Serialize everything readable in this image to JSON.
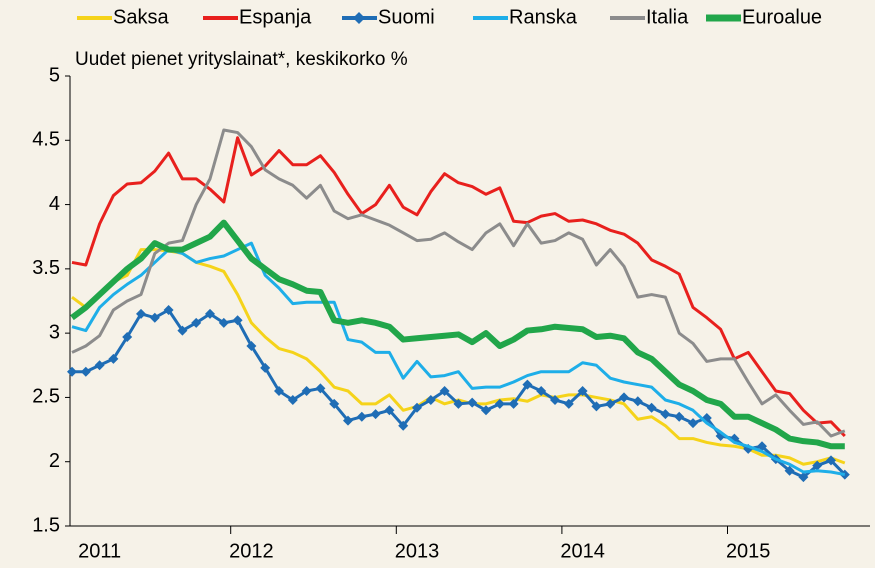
{
  "chart_data": {
    "type": "line",
    "subtitle": "Uudet pienet yrityslainat*, keskikorko %",
    "categories": [
      null,
      null,
      "2011",
      null,
      null,
      null,
      null,
      null,
      null,
      null,
      null,
      null,
      null,
      "2012",
      null,
      null,
      null,
      null,
      null,
      null,
      null,
      null,
      null,
      null,
      null,
      "2013",
      null,
      null,
      null,
      null,
      null,
      null,
      null,
      null,
      null,
      null,
      null,
      "2014",
      null,
      null,
      null,
      null,
      null,
      null,
      null,
      null,
      null,
      null,
      null,
      "2015",
      null,
      null,
      null,
      null,
      null,
      null,
      null
    ],
    "ylim": [
      1.5,
      5
    ],
    "yticks": [
      1.5,
      2,
      2.5,
      3,
      3.5,
      4,
      4.5,
      5
    ],
    "legend": "top",
    "series": [
      {
        "name": "Saksa",
        "color": "#f5d31a",
        "values": [
          3.28,
          3.2,
          3.3,
          3.4,
          3.45,
          3.65,
          3.65,
          3.64,
          3.62,
          3.55,
          3.52,
          3.48,
          3.3,
          3.08,
          2.97,
          2.88,
          2.85,
          2.8,
          2.7,
          2.58,
          2.55,
          2.45,
          2.45,
          2.52,
          2.4,
          2.43,
          2.5,
          2.45,
          2.48,
          2.45,
          2.45,
          2.48,
          2.49,
          2.47,
          2.52,
          2.5,
          2.52,
          2.52,
          2.5,
          2.48,
          2.45,
          2.33,
          2.35,
          2.28,
          2.18,
          2.18,
          2.15,
          2.13,
          2.12,
          2.1,
          2.05,
          2.05,
          2.03,
          1.98,
          2.0,
          2.03,
          1.99
        ]
      },
      {
        "name": "Espanja",
        "color": "#e8201d",
        "values": [
          3.55,
          3.53,
          3.85,
          4.07,
          4.16,
          4.17,
          4.26,
          4.4,
          4.2,
          4.2,
          4.12,
          4.02,
          4.52,
          4.23,
          4.3,
          4.42,
          4.31,
          4.31,
          4.38,
          4.25,
          4.08,
          3.93,
          4.0,
          4.15,
          3.98,
          3.92,
          4.1,
          4.24,
          4.17,
          4.14,
          4.08,
          4.13,
          3.87,
          3.86,
          3.91,
          3.93,
          3.87,
          3.88,
          3.85,
          3.8,
          3.77,
          3.7,
          3.57,
          3.52,
          3.46,
          3.2,
          3.12,
          3.03,
          2.8,
          2.85,
          2.7,
          2.55,
          2.53,
          2.4,
          2.3,
          2.31,
          2.2
        ]
      },
      {
        "name": "Suomi",
        "color": "#1f6db5",
        "values": [
          2.7,
          2.7,
          2.75,
          2.8,
          2.97,
          3.15,
          3.12,
          3.18,
          3.02,
          3.08,
          3.15,
          3.08,
          3.1,
          2.9,
          2.73,
          2.55,
          2.48,
          2.55,
          2.57,
          2.45,
          2.32,
          2.35,
          2.37,
          2.4,
          2.28,
          2.42,
          2.48,
          2.55,
          2.45,
          2.46,
          2.4,
          2.45,
          2.45,
          2.6,
          2.55,
          2.48,
          2.45,
          2.55,
          2.43,
          2.45,
          2.5,
          2.47,
          2.42,
          2.37,
          2.35,
          2.3,
          2.34,
          2.2,
          2.18,
          2.1,
          2.12,
          2.02,
          1.93,
          1.88,
          1.97,
          2.01,
          1.9
        ]
      },
      {
        "name": "Ranska",
        "color": "#1eaee8",
        "values": [
          3.05,
          3.02,
          3.2,
          3.3,
          3.38,
          3.45,
          3.55,
          3.65,
          3.62,
          3.55,
          3.58,
          3.6,
          3.65,
          3.7,
          3.45,
          3.35,
          3.23,
          3.24,
          3.24,
          3.24,
          2.95,
          2.93,
          2.85,
          2.85,
          2.65,
          2.78,
          2.66,
          2.67,
          2.7,
          2.57,
          2.58,
          2.58,
          2.62,
          2.67,
          2.7,
          2.7,
          2.7,
          2.77,
          2.75,
          2.65,
          2.62,
          2.6,
          2.58,
          2.48,
          2.45,
          2.4,
          2.3,
          2.23,
          2.15,
          2.12,
          2.08,
          2.02,
          1.98,
          1.92,
          1.93,
          1.92,
          1.9
        ]
      },
      {
        "name": "Italia",
        "color": "#8c8c8c",
        "values": [
          2.85,
          2.9,
          2.98,
          3.18,
          3.25,
          3.3,
          3.62,
          3.7,
          3.72,
          4.0,
          4.2,
          4.58,
          4.56,
          4.45,
          4.27,
          4.2,
          4.15,
          4.05,
          4.15,
          3.95,
          3.89,
          3.92,
          3.88,
          3.84,
          3.78,
          3.72,
          3.73,
          3.78,
          3.71,
          3.65,
          3.78,
          3.85,
          3.68,
          3.85,
          3.7,
          3.72,
          3.78,
          3.73,
          3.53,
          3.65,
          3.52,
          3.28,
          3.3,
          3.28,
          3.0,
          2.92,
          2.78,
          2.8,
          2.8,
          2.62,
          2.45,
          2.52,
          2.4,
          2.29,
          2.31,
          2.2,
          2.24
        ]
      },
      {
        "name": "Euroalue",
        "color": "#21a64a",
        "values": [
          3.12,
          3.2,
          3.3,
          3.4,
          3.5,
          3.58,
          3.7,
          3.65,
          3.65,
          3.7,
          3.75,
          3.86,
          3.72,
          3.58,
          3.5,
          3.42,
          3.38,
          3.33,
          3.32,
          3.1,
          3.08,
          3.1,
          3.08,
          3.05,
          2.95,
          2.96,
          2.97,
          2.98,
          2.99,
          2.93,
          3.0,
          2.9,
          2.95,
          3.02,
          3.03,
          3.05,
          3.04,
          3.03,
          2.97,
          2.98,
          2.96,
          2.85,
          2.8,
          2.7,
          2.6,
          2.55,
          2.48,
          2.45,
          2.35,
          2.35,
          2.3,
          2.25,
          2.18,
          2.16,
          2.15,
          2.12,
          2.12
        ]
      }
    ]
  }
}
